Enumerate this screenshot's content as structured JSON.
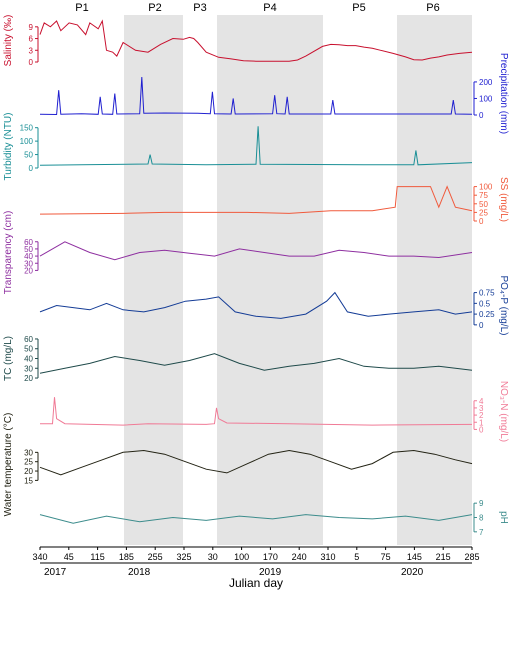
{
  "chart_data": {
    "type": "line",
    "xlabel": "Julian day",
    "x_ticks": [
      "340",
      "45",
      "115",
      "185",
      "255",
      "325",
      "30",
      "100",
      "170",
      "240",
      "310",
      "5",
      "75",
      "145",
      "215",
      "285"
    ],
    "years": [
      "2017",
      "2018",
      "2019",
      "2020"
    ],
    "periods": [
      {
        "label": "P1",
        "shaded": false
      },
      {
        "label": "P2",
        "shaded": true
      },
      {
        "label": "P3",
        "shaded": false
      },
      {
        "label": "P4",
        "shaded": true
      },
      {
        "label": "P5",
        "shaded": false
      },
      {
        "label": "P6",
        "shaded": true
      }
    ],
    "shade_color": "#e4e4e4",
    "panels": [
      {
        "ylabel": "Salinity (‰)",
        "side": "left",
        "color": "#c8102e",
        "ticks": [
          "0",
          "3",
          "6",
          "9"
        ],
        "ylim": [
          0,
          11
        ],
        "x": [
          0,
          10,
          25,
          40,
          50,
          70,
          90,
          110,
          120,
          140,
          150,
          160,
          175,
          185,
          200,
          230,
          260,
          290,
          320,
          345,
          360,
          370,
          380,
          400,
          430,
          460,
          490,
          520,
          550,
          580,
          600,
          620,
          640,
          680,
          700,
          720,
          740,
          760,
          780,
          800,
          820,
          850,
          880,
          900,
          920,
          940,
          960,
          980,
          1010,
          1040
        ],
        "values": [
          7,
          10,
          9,
          10.5,
          8,
          10,
          9.5,
          7,
          10,
          8.5,
          10.5,
          3,
          2.5,
          1.5,
          5,
          3,
          2.5,
          4.5,
          6,
          5.8,
          6.3,
          6,
          5,
          2.5,
          1.2,
          0.8,
          0.3,
          0.2,
          0.2,
          0.2,
          0.2,
          0.5,
          1.5,
          4,
          4.5,
          4.4,
          4.2,
          4.2,
          3.8,
          3.5,
          3,
          2.2,
          1.3,
          0.6,
          0.5,
          1,
          1.3,
          1.8,
          2.2,
          2.5
        ]
      },
      {
        "ylabel": "Precipitation (mm)",
        "side": "right",
        "color": "#2020d0",
        "ticks": [
          "0",
          "100",
          "200"
        ],
        "ylim": [
          0,
          260
        ],
        "x": [
          0,
          40,
          45,
          50,
          100,
          140,
          145,
          150,
          175,
          180,
          185,
          240,
          245,
          250,
          300,
          380,
          410,
          415,
          420,
          460,
          465,
          470,
          560,
          565,
          570,
          590,
          595,
          600,
          700,
          705,
          710,
          990,
          995,
          1000,
          1040
        ],
        "values": [
          5,
          3,
          150,
          5,
          8,
          4,
          110,
          6,
          4,
          130,
          6,
          8,
          230,
          10,
          12,
          10,
          8,
          140,
          8,
          6,
          100,
          6,
          8,
          120,
          8,
          6,
          110,
          6,
          6,
          90,
          6,
          6,
          90,
          6,
          5
        ]
      },
      {
        "ylabel": "Turbidity (NTU)",
        "side": "left",
        "color": "#1a8f96",
        "ticks": [
          "0",
          "50",
          "100",
          "150"
        ],
        "ylim": [
          0,
          160
        ],
        "x": [
          0,
          100,
          260,
          265,
          270,
          400,
          520,
          525,
          530,
          780,
          900,
          905,
          910,
          1040
        ],
        "values": [
          10,
          12,
          15,
          50,
          15,
          12,
          14,
          155,
          14,
          12,
          12,
          65,
          12,
          20
        ]
      },
      {
        "ylabel": "SS (mg/L)",
        "side": "right",
        "color": "#f05a3c",
        "ticks": [
          "0",
          "25",
          "50",
          "75",
          "100"
        ],
        "ylim": [
          0,
          125
        ],
        "x": [
          0,
          200,
          300,
          400,
          500,
          600,
          700,
          800,
          855,
          860,
          900,
          940,
          960,
          980,
          1000,
          1040
        ],
        "values": [
          20,
          22,
          25,
          25,
          25,
          22,
          30,
          30,
          40,
          100,
          100,
          100,
          40,
          100,
          40,
          30
        ]
      },
      {
        "ylabel": "Transparency (cm)",
        "side": "left",
        "color": "#8e2fa0",
        "ticks": [
          "20",
          "30",
          "40",
          "50",
          "60"
        ],
        "ylim": [
          15,
          75
        ],
        "x": [
          0,
          60,
          120,
          180,
          240,
          300,
          360,
          420,
          480,
          540,
          600,
          660,
          720,
          780,
          840,
          900,
          960,
          1040
        ],
        "values": [
          40,
          60,
          45,
          35,
          45,
          48,
          44,
          40,
          50,
          45,
          40,
          40,
          48,
          45,
          40,
          40,
          38,
          45
        ]
      },
      {
        "ylabel": "PO₄-P (mg/L)",
        "side": "right",
        "color": "#143c96",
        "ticks": [
          "0",
          "0.25",
          "0.5",
          "0.75"
        ],
        "ylim": [
          -0.05,
          0.95
        ],
        "x": [
          0,
          40,
          80,
          120,
          160,
          200,
          250,
          300,
          350,
          400,
          430,
          470,
          520,
          580,
          640,
          690,
          710,
          740,
          790,
          840,
          900,
          960,
          1000,
          1040
        ],
        "values": [
          0.3,
          0.45,
          0.4,
          0.35,
          0.5,
          0.35,
          0.3,
          0.4,
          0.55,
          0.6,
          0.65,
          0.3,
          0.2,
          0.15,
          0.25,
          0.55,
          0.75,
          0.3,
          0.2,
          0.25,
          0.3,
          0.35,
          0.25,
          0.3
        ]
      },
      {
        "ylabel": "TC (mg/L)",
        "side": "left",
        "color": "#1f4a4a",
        "ticks": [
          "20",
          "30",
          "40",
          "50",
          "60"
        ],
        "ylim": [
          18,
          62
        ],
        "x": [
          0,
          60,
          120,
          180,
          240,
          300,
          360,
          420,
          480,
          540,
          600,
          660,
          720,
          780,
          840,
          900,
          960,
          1040
        ],
        "values": [
          25,
          30,
          35,
          42,
          38,
          33,
          38,
          45,
          35,
          28,
          32,
          35,
          40,
          32,
          30,
          30,
          32,
          28
        ]
      },
      {
        "ylabel": "NO₃-N (mg/L)",
        "side": "right",
        "color": "#f07a96",
        "ticks": [
          "0",
          "1",
          "2",
          "3",
          "4"
        ],
        "ylim": [
          -0.5,
          5.5
        ],
        "x": [
          0,
          30,
          35,
          40,
          60,
          200,
          260,
          400,
          420,
          425,
          430,
          450,
          600,
          800,
          1040
        ],
        "values": [
          0.8,
          0.8,
          4.5,
          1.5,
          0.8,
          0.6,
          0.8,
          0.7,
          0.8,
          3,
          1.5,
          0.9,
          0.8,
          0.6,
          0.7
        ]
      },
      {
        "ylabel": "Water temperature (°C)",
        "side": "left",
        "color": "#232314",
        "ticks": [
          "15",
          "20",
          "25",
          "30"
        ],
        "ylim": [
          12,
          35
        ],
        "x": [
          0,
          50,
          100,
          150,
          200,
          250,
          300,
          350,
          400,
          450,
          500,
          550,
          600,
          650,
          700,
          750,
          800,
          850,
          900,
          950,
          1000,
          1040
        ],
        "values": [
          22,
          18,
          22,
          26,
          30,
          31,
          29,
          25,
          21,
          19,
          24,
          29,
          31,
          29,
          25,
          21,
          24,
          30,
          31,
          29,
          26,
          24
        ]
      },
      {
        "ylabel": "pH",
        "side": "right",
        "color": "#3c8c8c",
        "ticks": [
          "7",
          "8",
          "9"
        ],
        "ylim": [
          6.5,
          9.5
        ],
        "x": [
          0,
          80,
          160,
          240,
          320,
          400,
          480,
          560,
          640,
          720,
          800,
          880,
          960,
          1040
        ],
        "values": [
          8.2,
          7.6,
          8.1,
          7.7,
          8.0,
          7.8,
          8.1,
          7.9,
          8.2,
          8.0,
          7.9,
          8.1,
          7.8,
          8.2
        ]
      }
    ]
  }
}
